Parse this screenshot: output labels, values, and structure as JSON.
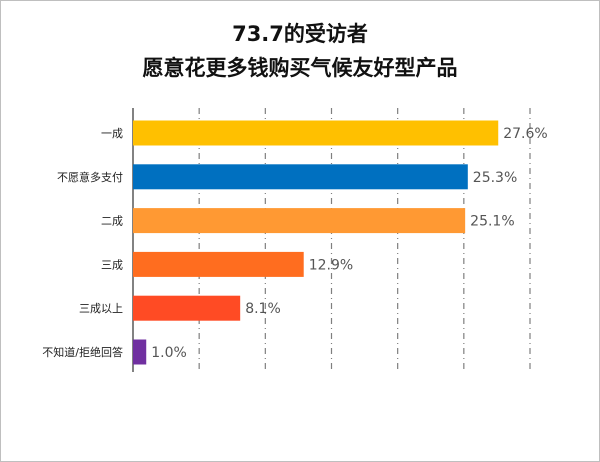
{
  "chart_data": {
    "type": "bar",
    "orientation": "horizontal",
    "title_lines": [
      "73.7的受访者",
      "愿意花更多钱购买气候友好型产品"
    ],
    "categories": [
      "一成",
      "不愿意多支付",
      "二成",
      "三成",
      "三成以上",
      "不知道/拒绝回答"
    ],
    "values": [
      27.6,
      25.3,
      25.1,
      12.9,
      8.1,
      1.0
    ],
    "value_labels": [
      "27.6%",
      "25.3%",
      "25.1%",
      "12.9%",
      "8.1%",
      "1.0%"
    ],
    "colors": [
      "#FFC000",
      "#0070C0",
      "#FF9933",
      "#FF6D1F",
      "#FF4B24",
      "#7030A0"
    ],
    "xlim": [
      0,
      30
    ],
    "grid": "vertical-dashed",
    "legend": "none"
  }
}
